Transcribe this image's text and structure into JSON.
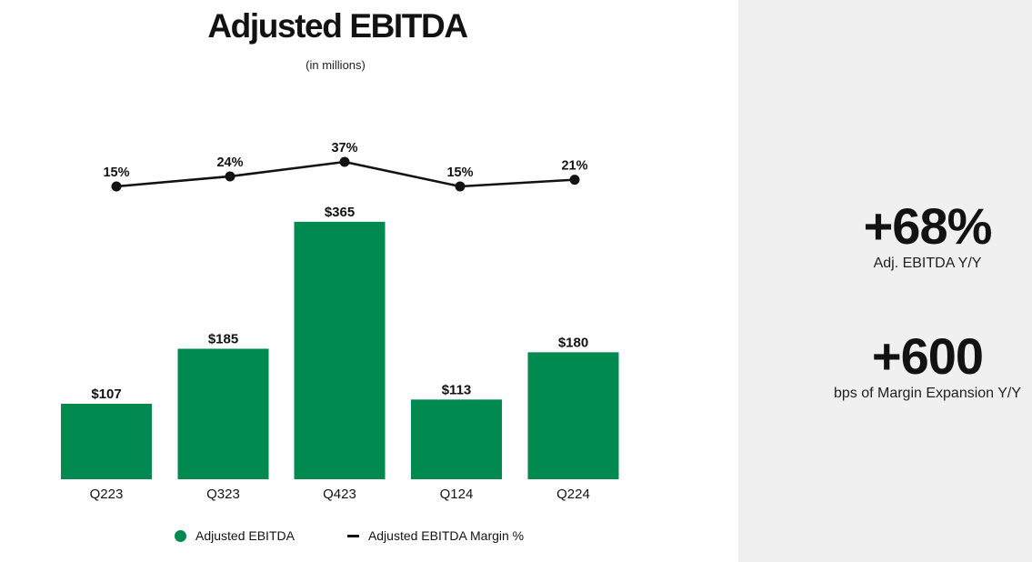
{
  "header": {
    "title": "Adjusted EBITDA",
    "subtitle": "(in millions)"
  },
  "chart_data": {
    "type": "bar",
    "title": "Adjusted EBITDA",
    "subtitle": "(in millions)",
    "categories": [
      "Q223",
      "Q323",
      "Q423",
      "Q124",
      "Q224"
    ],
    "series": [
      {
        "name": "Adjusted EBITDA",
        "type": "bar",
        "unit": "$ millions",
        "values": [
          107,
          185,
          365,
          113,
          180
        ],
        "data_labels": [
          "$107",
          "$185",
          "$365",
          "$113",
          "$180"
        ],
        "color": "#008A50"
      },
      {
        "name": "Adjusted EBITDA Margin %",
        "type": "line",
        "unit": "%",
        "values": [
          15,
          24,
          37,
          15,
          21
        ],
        "data_labels": [
          "15%",
          "24%",
          "37%",
          "15%",
          "21%"
        ],
        "color": "#121212"
      }
    ],
    "xlabel": "",
    "ylabel": "",
    "ylim": [
      0,
      400
    ],
    "line_ylim": [
      0,
      40
    ],
    "grid": false,
    "axes_visible": false,
    "legend_position": "bottom"
  },
  "legend": {
    "items": [
      {
        "label": "Adjusted EBITDA",
        "marker": "circle",
        "color": "#008A50"
      },
      {
        "label": "Adjusted EBITDA Margin %",
        "marker": "dash",
        "color": "#121212"
      }
    ]
  },
  "sidebar": {
    "background": "#F0F0F1",
    "stats": [
      {
        "value": "+68%",
        "label": "Adj. EBITDA Y/Y"
      },
      {
        "value": "+600",
        "label": "bps of Margin Expansion Y/Y"
      }
    ]
  },
  "colors": {
    "bar_green": "#008A50",
    "line_black": "#121212",
    "sidebar_bg": "#F0F0F1",
    "text": "#121212"
  }
}
